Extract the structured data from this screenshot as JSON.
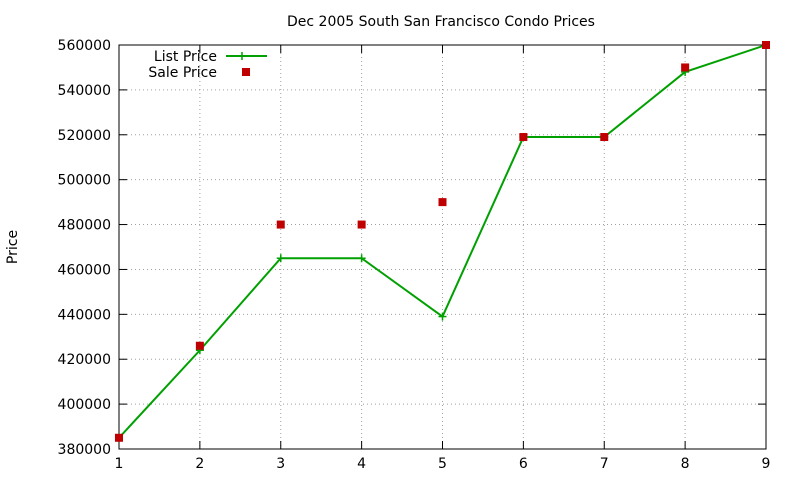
{
  "chart_data": {
    "type": "line",
    "title": "Dec 2005 South San Francisco Condo Prices",
    "xlabel": "",
    "ylabel": "Price",
    "xlim": [
      1,
      9
    ],
    "ylim": [
      380000,
      560000
    ],
    "xticks": [
      1,
      2,
      3,
      4,
      5,
      6,
      7,
      8,
      9
    ],
    "yticks": [
      380000,
      400000,
      420000,
      440000,
      460000,
      480000,
      500000,
      520000,
      540000,
      560000
    ],
    "grid": true,
    "legend_position": "top-left",
    "series": [
      {
        "name": "List Price",
        "style": "line-plus",
        "color": "#00a000",
        "x": [
          1,
          2,
          3,
          4,
          5,
          6,
          7,
          8,
          9
        ],
        "y": [
          385000,
          424000,
          465000,
          465000,
          439000,
          519000,
          519000,
          548000,
          560000
        ]
      },
      {
        "name": "Sale Price",
        "style": "square-points",
        "color": "#c00000",
        "x": [
          1,
          2,
          3,
          4,
          5,
          6,
          7,
          8,
          9
        ],
        "y": [
          385000,
          426000,
          480000,
          480000,
          490000,
          519000,
          519000,
          550000,
          560000
        ]
      }
    ]
  }
}
